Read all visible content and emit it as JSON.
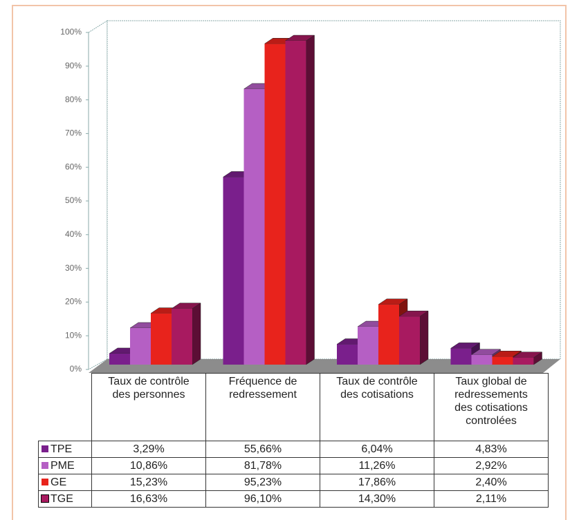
{
  "chart_data": {
    "type": "bar3d",
    "categories": [
      "Taux de contrôle des personnes",
      "Fréquence de redressement",
      "Taux de contrôle des cotisations",
      "Taux global de redressements des cotisations controlées"
    ],
    "series": [
      {
        "name": "TPE",
        "color": "#7a1f8c",
        "values": [
          3.29,
          55.66,
          6.04,
          4.83
        ],
        "value_labels": [
          "3,29%",
          "55,66%",
          "6,04%",
          "4,83%"
        ]
      },
      {
        "name": "PME",
        "color": "#b55fc4",
        "values": [
          10.86,
          81.78,
          11.26,
          2.92
        ],
        "value_labels": [
          "10,86%",
          "81,78%",
          "11,26%",
          "2,92%"
        ]
      },
      {
        "name": "GE",
        "color": "#e8231c",
        "values": [
          15.23,
          95.23,
          17.86,
          2.4
        ],
        "value_labels": [
          "15,23%",
          "95,23%",
          "17,86%",
          "2,40%"
        ]
      },
      {
        "name": "TGE",
        "color": "#a81a60",
        "values": [
          16.63,
          96.1,
          14.3,
          2.11
        ],
        "value_labels": [
          "16,63%",
          "96,10%",
          "14,30%",
          "2,11%"
        ]
      }
    ],
    "ylim": [
      0,
      100
    ],
    "yticks": [
      {
        "value": 0,
        "label": "0%"
      },
      {
        "value": 10,
        "label": "10%"
      },
      {
        "value": 20,
        "label": "20%"
      },
      {
        "value": 30,
        "label": "30%"
      },
      {
        "value": 40,
        "label": "40%"
      },
      {
        "value": 50,
        "label": "50%"
      },
      {
        "value": 60,
        "label": "60%"
      },
      {
        "value": 70,
        "label": "70%"
      },
      {
        "value": 80,
        "label": "80%"
      },
      {
        "value": 90,
        "label": "90%"
      },
      {
        "value": 100,
        "label": "100%"
      }
    ]
  }
}
